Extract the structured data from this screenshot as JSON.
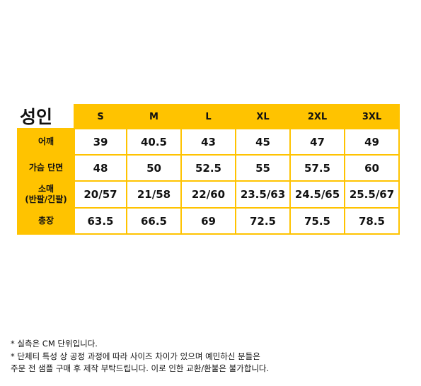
{
  "table": {
    "title": "성인",
    "sizes": [
      "S",
      "M",
      "L",
      "XL",
      "2XL",
      "3XL"
    ],
    "rows": [
      {
        "label_lines": [
          "어깨"
        ],
        "values": [
          "39",
          "40.5",
          "43",
          "45",
          "47",
          "49"
        ]
      },
      {
        "label_lines": [
          "가슴 단면"
        ],
        "values": [
          "48",
          "50",
          "52.5",
          "55",
          "57.5",
          "60"
        ]
      },
      {
        "label_lines": [
          "소매",
          "(반팔/긴팔)"
        ],
        "values": [
          "20/57",
          "21/58",
          "22/60",
          "23.5/63",
          "24.5/65",
          "25.5/67"
        ]
      },
      {
        "label_lines": [
          "총장"
        ],
        "values": [
          "63.5",
          "66.5",
          "69",
          "72.5",
          "75.5",
          "78.5"
        ]
      }
    ]
  },
  "notes": {
    "lines": [
      "* 실측은 CM 단위입니다.",
      "* 단체티 특성 상 공정 과정에 따라 사이즈 차이가 있으며 예민하신 분들은",
      "주문 전 샘플 구매 후 제작 부탁드립니다. 이로 인한 교환/환불은 불가합니다."
    ]
  },
  "colors": {
    "accent": "#ffc300",
    "text": "#111111",
    "background": "#ffffff"
  }
}
